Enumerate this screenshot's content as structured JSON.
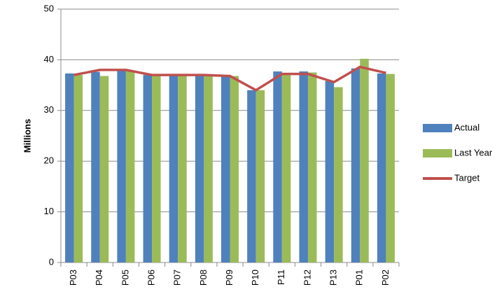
{
  "chart_data": {
    "type": "bar",
    "y_label": "Millions",
    "categories": [
      "P03",
      "P04",
      "P05",
      "P06",
      "P07",
      "P08",
      "P09",
      "P10",
      "P11",
      "P12",
      "P13",
      "P01",
      "P02"
    ],
    "series": [
      {
        "name": "Actual",
        "type": "bar",
        "color": "#4f81bd",
        "values": [
          37.3,
          37.6,
          37.8,
          37.0,
          37.2,
          37.0,
          36.8,
          34.0,
          37.7,
          37.7,
          35.8,
          38.3,
          37.3
        ]
      },
      {
        "name": "Last Year",
        "type": "bar",
        "color": "#9bbb59",
        "values": [
          37.0,
          36.8,
          37.8,
          36.8,
          37.0,
          37.0,
          36.8,
          34.0,
          37.0,
          37.5,
          34.6,
          40.2,
          37.2
        ]
      },
      {
        "name": "Target",
        "type": "line",
        "color": "#c0504d",
        "values": [
          37.0,
          38.0,
          38.0,
          37.0,
          37.0,
          37.0,
          36.8,
          34.0,
          37.2,
          37.2,
          35.6,
          38.6,
          37.4
        ]
      }
    ],
    "ylim": [
      0,
      50
    ],
    "yticks": [
      0,
      10,
      20,
      30,
      40,
      50
    ],
    "grid": true,
    "legend": "right"
  }
}
